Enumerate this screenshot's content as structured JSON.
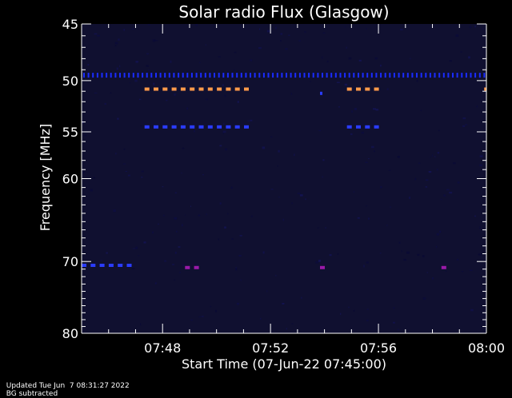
{
  "chart_data": {
    "type": "heatmap",
    "title": "Solar radio Flux (Glasgow)",
    "xlabel": "Start Time (07-Jun-22 07:45:00)",
    "ylabel": "Frequency [MHz]",
    "x_range_minutes": [
      "07:45",
      "08:00"
    ],
    "x_ticks": [
      "07:48",
      "07:52",
      "07:56",
      "08:00"
    ],
    "y_range": [
      45,
      80
    ],
    "y_scale": "log",
    "y_inverted": true,
    "y_ticks": [
      45,
      50,
      55,
      60,
      70,
      80
    ],
    "grid": false,
    "background_color": "#101030",
    "colors": {
      "dots_blue": "#1a2cff",
      "blue": "#2a3cff",
      "orange": "#ff9a4a",
      "purple": "#9a1aa8"
    },
    "features": [
      {
        "kind": "dots",
        "freq": 49.5,
        "start": "07:45:00",
        "end": "08:00:00",
        "step_s": 10,
        "color": "dots_blue"
      },
      {
        "kind": "dashes",
        "freq": 50.8,
        "start": "07:47:20",
        "end": "07:51:10",
        "color": "orange"
      },
      {
        "kind": "dashes",
        "freq": 50.8,
        "start": "07:54:50",
        "end": "07:56:00",
        "color": "orange"
      },
      {
        "kind": "dashes",
        "freq": 54.5,
        "start": "07:47:20",
        "end": "07:51:10",
        "color": "blue"
      },
      {
        "kind": "dashes",
        "freq": 54.5,
        "start": "07:54:50",
        "end": "07:56:00",
        "color": "blue"
      },
      {
        "kind": "dashes",
        "freq": 70.5,
        "start": "07:45:00",
        "end": "07:46:50",
        "color": "blue"
      },
      {
        "kind": "dashes",
        "freq": 70.8,
        "start": "07:48:50",
        "end": "07:49:35",
        "color": "purple"
      },
      {
        "kind": "dashes",
        "freq": 70.8,
        "start": "07:53:50",
        "end": "07:54:15",
        "color": "purple"
      },
      {
        "kind": "dashes",
        "freq": 70.8,
        "start": "07:58:20",
        "end": "07:58:45",
        "color": "purple"
      },
      {
        "kind": "point",
        "freq": 51.2,
        "time": "07:53:50",
        "color": "blue"
      },
      {
        "kind": "point",
        "freq": 50.8,
        "time": "07:59:55",
        "color": "orange"
      }
    ]
  },
  "footer": {
    "updated": "Updated Tue Jun  7 08:31:27 2022",
    "note": "BG subtracted"
  }
}
